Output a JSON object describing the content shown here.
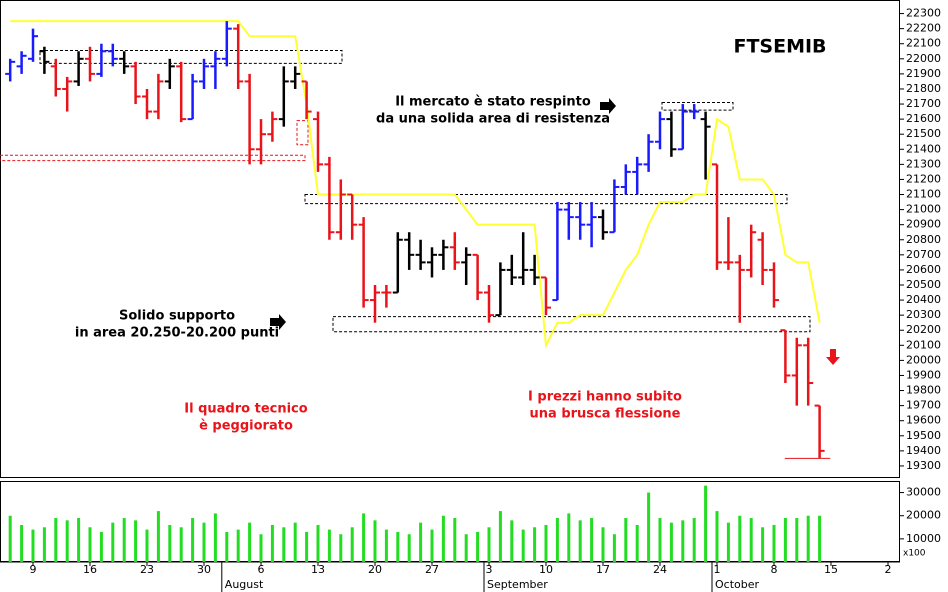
{
  "chart_data": {
    "type": "ohlc",
    "title": "FTSEMIB",
    "categories": [
      null,
      null,
      "9",
      null,
      null,
      null,
      null,
      "16",
      null,
      null,
      null,
      null,
      "23",
      null,
      null,
      null,
      null,
      "30",
      null,
      null,
      null,
      null,
      "6",
      null,
      null,
      null,
      null,
      "13",
      null,
      null,
      null,
      null,
      "20",
      null,
      null,
      null,
      null,
      "27",
      null,
      null,
      null,
      null,
      "3",
      null,
      null,
      null,
      null,
      "10",
      null,
      null,
      null,
      null,
      "17",
      null,
      null,
      null,
      null,
      "24",
      null,
      null,
      null,
      null,
      "1",
      null,
      null,
      null,
      null,
      "8",
      null,
      null,
      null,
      null,
      "15",
      null,
      null,
      null,
      null,
      "2"
    ],
    "months": [
      "August",
      "September",
      "October"
    ],
    "open": [
      21900,
      21950,
      22000,
      22050,
      21950,
      21800,
      21850,
      22000,
      21900,
      22050,
      22000,
      21950,
      21750,
      21650,
      21850,
      21950,
      21600,
      21850,
      21950,
      22000,
      22200,
      21850,
      21400,
      21500,
      21600,
      21850,
      21850,
      21600,
      21300,
      20850,
      21100,
      20900,
      20400,
      20450,
      20450,
      20800,
      20700,
      20650,
      20700,
      20750,
      20650,
      20700,
      20450,
      20300,
      20600,
      20550,
      20600,
      20550,
      20400,
      21000,
      20950,
      20900,
      20950,
      20850,
      21150,
      21250,
      21300,
      21450,
      21600,
      21400,
      21650,
      21600,
      21300,
      20650,
      20650,
      20600,
      20800,
      20600,
      20200,
      19900,
      20100,
      19700,
      null,
      null,
      null,
      null,
      null,
      null
    ],
    "high": [
      22000,
      22050,
      22200,
      22080,
      22000,
      21880,
      22050,
      22080,
      22100,
      22100,
      22050,
      21980,
      21800,
      21900,
      22000,
      21980,
      21900,
      22000,
      22050,
      22250,
      22230,
      21900,
      21600,
      21650,
      21950,
      21950,
      21850,
      21650,
      21350,
      21200,
      21100,
      20950,
      20500,
      20500,
      20850,
      20850,
      20800,
      20750,
      20800,
      20850,
      20750,
      20700,
      20500,
      20650,
      20700,
      20850,
      20700,
      20550,
      21050,
      21050,
      21050,
      21050,
      21000,
      21200,
      21300,
      21350,
      21500,
      21650,
      21650,
      21700,
      21700,
      21650,
      21300,
      20950,
      20700,
      20900,
      20850,
      20650,
      20200,
      20150,
      20150,
      19700,
      null,
      null,
      null,
      null,
      null,
      null
    ],
    "low": [
      21850,
      21900,
      21980,
      21900,
      21750,
      21650,
      21820,
      21850,
      21880,
      21950,
      21900,
      21700,
      21600,
      21600,
      21800,
      21580,
      21600,
      21800,
      21800,
      21950,
      21800,
      21300,
      21300,
      21450,
      21550,
      21800,
      21600,
      21250,
      20800,
      20800,
      20800,
      20350,
      20250,
      20350,
      20450,
      20600,
      20600,
      20550,
      20600,
      20600,
      20500,
      20400,
      20250,
      20300,
      20500,
      20500,
      20500,
      20300,
      20400,
      20800,
      20800,
      20750,
      20800,
      20850,
      21100,
      21100,
      21250,
      21400,
      21350,
      21400,
      21600,
      21200,
      20600,
      20600,
      20250,
      20550,
      20500,
      20350,
      19850,
      19700,
      19700,
      19350,
      null,
      null,
      null,
      null,
      null,
      null
    ],
    "close": [
      21980,
      22020,
      22150,
      21980,
      21800,
      21850,
      22000,
      21900,
      22050,
      22000,
      21950,
      21750,
      21650,
      21850,
      21950,
      21600,
      21850,
      21950,
      22000,
      22200,
      21850,
      21400,
      21500,
      21600,
      21850,
      21900,
      21650,
      21300,
      20850,
      21100,
      20900,
      20400,
      20450,
      20450,
      20800,
      20700,
      20650,
      20700,
      20750,
      20650,
      20700,
      20450,
      20300,
      20600,
      20550,
      20600,
      20550,
      20350,
      21000,
      20950,
      20900,
      20950,
      20850,
      21150,
      21250,
      21300,
      21450,
      21600,
      21400,
      21650,
      21650,
      21550,
      20650,
      20650,
      20600,
      20850,
      20600,
      20400,
      19900,
      20100,
      19850,
      19400,
      null,
      null,
      null,
      null,
      null,
      null
    ],
    "bar_colors": [
      "#1a1aff",
      "#1a1aff",
      "#1a1aff",
      "#000000",
      "#e8141a",
      "#e8141a",
      "#000000",
      "#e8141a",
      "#1a1aff",
      "#1a1aff",
      "#000000",
      "#e8141a",
      "#e8141a",
      "#e8141a",
      "#000000",
      "#e8141a",
      "#1a1aff",
      "#1a1aff",
      "#1a1aff",
      "#1a1aff",
      "#e8141a",
      "#e8141a",
      "#e8141a",
      "#e8141a",
      "#000000",
      "#000000",
      "#e8141a",
      "#e8141a",
      "#e8141a",
      "#e8141a",
      "#e8141a",
      "#e8141a",
      "#e8141a",
      "#e8141a",
      "#000000",
      "#000000",
      "#000000",
      "#000000",
      "#000000",
      "#e8141a",
      "#000000",
      "#e8141a",
      "#e8141a",
      "#000000",
      "#000000",
      "#000000",
      "#000000",
      "#e8141a",
      "#1a1aff",
      "#1a1aff",
      "#1a1aff",
      "#1a1aff",
      "#000000",
      "#1a1aff",
      "#1a1aff",
      "#1a1aff",
      "#1a1aff",
      "#1a1aff",
      "#000000",
      "#1a1aff",
      "#1a1aff",
      "#000000",
      "#e8141a",
      "#e8141a",
      "#e8141a",
      "#e8141a",
      "#e8141a",
      "#e8141a",
      "#e8141a",
      "#e8141a",
      "#e8141a",
      "#e8141a"
    ],
    "line": {
      "color": "#ffff33",
      "values": [
        22250,
        22250,
        22250,
        22250,
        22250,
        22250,
        22250,
        22250,
        22250,
        22250,
        22250,
        22250,
        22250,
        22250,
        22250,
        22250,
        22250,
        22250,
        22250,
        22250,
        22250,
        22150,
        22150,
        22150,
        22150,
        22150,
        21700,
        21100,
        21100,
        21100,
        21100,
        21100,
        21100,
        21100,
        21100,
        21100,
        21100,
        21100,
        21100,
        21100,
        21000,
        20900,
        20900,
        20900,
        20900,
        20900,
        20900,
        20100,
        20250,
        20250,
        20300,
        20300,
        20300,
        20450,
        20600,
        20700,
        20900,
        21050,
        21050,
        21050,
        21100,
        21100,
        21600,
        21550,
        21200,
        21200,
        21200,
        21100,
        20700,
        20650,
        20650,
        20250,
        null,
        null,
        null,
        null,
        null,
        null
      ]
    },
    "ylim": [
      19220,
      22390
    ],
    "yticks": [
      19300,
      19400,
      19500,
      19600,
      19700,
      19800,
      19900,
      20000,
      20100,
      20200,
      20300,
      20400,
      20500,
      20600,
      20700,
      20800,
      20900,
      21000,
      21100,
      21200,
      21300,
      21400,
      21500,
      21600,
      21700,
      21800,
      21900,
      22000,
      22100,
      22200,
      22300
    ],
    "zones": [
      {
        "low": 21970,
        "high": 22055,
        "color": "#000000"
      },
      {
        "low": 21325,
        "high": 21360,
        "color": "#e8141a"
      },
      {
        "low": 21430,
        "high": 21590,
        "color": "#e8141a"
      },
      {
        "low": 21040,
        "high": 21100,
        "color": "#000000"
      },
      {
        "low": 20190,
        "high": 20290,
        "color": "#000000"
      },
      {
        "low": 21660,
        "high": 21710,
        "color": "#000000"
      },
      {
        "low": 19350,
        "high": 19350,
        "color": "#e8141a"
      }
    ],
    "volume": {
      "color": "#22dd22",
      "unit_label": "x100",
      "ylim": [
        0,
        35000
      ],
      "yticks": [
        10000,
        20000,
        30000
      ],
      "values": [
        20000,
        16000,
        14000,
        15000,
        19000,
        18000,
        19000,
        15000,
        13000,
        17000,
        19000,
        18000,
        14000,
        22000,
        16000,
        15000,
        19000,
        17000,
        21000,
        13000,
        14000,
        17000,
        12000,
        16000,
        15000,
        17000,
        13000,
        16000,
        14000,
        12000,
        15000,
        21000,
        18000,
        14000,
        13000,
        12000,
        17000,
        14000,
        20000,
        19000,
        12000,
        13000,
        15000,
        22000,
        18000,
        14000,
        15000,
        16000,
        19000,
        21000,
        18000,
        19000,
        15000,
        12000,
        19000,
        16000,
        30000,
        19000,
        17000,
        18000,
        19000,
        33000,
        22000,
        17000,
        20000,
        19000,
        15000,
        16000,
        19000,
        19000,
        20000,
        20000,
        null,
        null,
        null,
        null,
        null,
        null
      ]
    },
    "annotations": [
      {
        "lines": [
          "Il mercato è stato respinto",
          "da una solida area di resistenza"
        ],
        "color": "#000000"
      },
      {
        "lines": [
          "Solido supporto",
          "in area 20.250-20.200 punti"
        ],
        "color": "#000000"
      },
      {
        "lines": [
          "Il quadro tecnico",
          "è peggiorato"
        ],
        "color": "#e8141a"
      },
      {
        "lines": [
          "I prezzi hanno subito",
          "una brusca flessione"
        ],
        "color": "#e8141a"
      }
    ]
  }
}
